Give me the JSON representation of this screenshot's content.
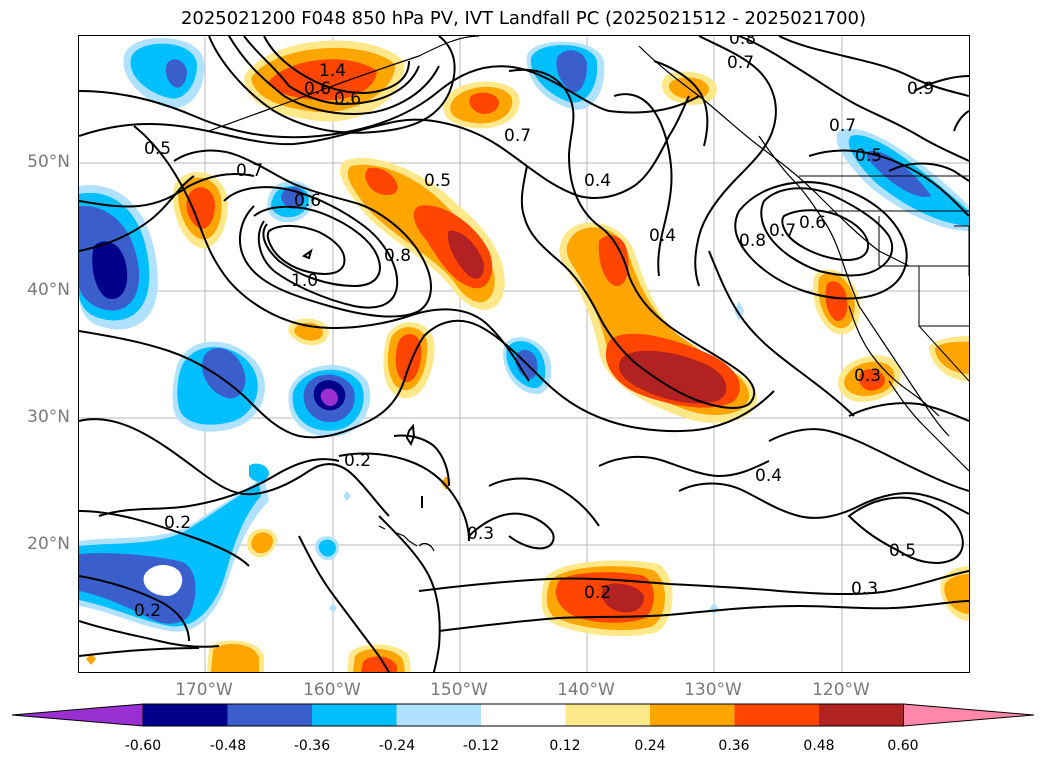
{
  "title": "2025021200 F048 850 hPa PV, IVT Landfall PC (2025021512 - 2025021700)",
  "latitude_labels": [
    {
      "text": "50°N",
      "value": 50
    },
    {
      "text": "40°N",
      "value": 40
    },
    {
      "text": "30°N",
      "value": 30
    },
    {
      "text": "20°N",
      "value": 20
    }
  ],
  "longitude_labels": [
    {
      "text": "170°W",
      "value": -170
    },
    {
      "text": "160°W",
      "value": -160
    },
    {
      "text": "150°W",
      "value": -150
    },
    {
      "text": "140°W",
      "value": -140
    },
    {
      "text": "130°W",
      "value": -130
    },
    {
      "text": "120°W",
      "value": -120
    }
  ],
  "colorbar": {
    "colors": [
      "#9b30d2",
      "#00008b",
      "#3a5fcd",
      "#00bfff",
      "#b0e2ff",
      "#ffffff",
      "#ffe88a",
      "#ffa500",
      "#ff4500",
      "#b22222",
      "#ff88aa"
    ],
    "tick_labels": [
      "-0.60",
      "-0.48",
      "-0.36",
      "-0.24",
      "-0.12",
      "0.12",
      "0.24",
      "0.36",
      "0.48",
      "0.60"
    ]
  },
  "contour_labels": [
    "1.4",
    "0.6",
    "0.6",
    "0.8",
    "0.7",
    "0.9",
    "0.5",
    "0.7",
    "0.6",
    "1.0",
    "0.8",
    "0.5",
    "0.4",
    "0.4",
    "0.8",
    "0.7",
    "0.6",
    "0.7",
    "0.5",
    "0.7",
    "0.3",
    "0.2",
    "0.2",
    "0.3",
    "0.2",
    "0.4",
    "0.5",
    "0.3",
    "0.2"
  ]
}
